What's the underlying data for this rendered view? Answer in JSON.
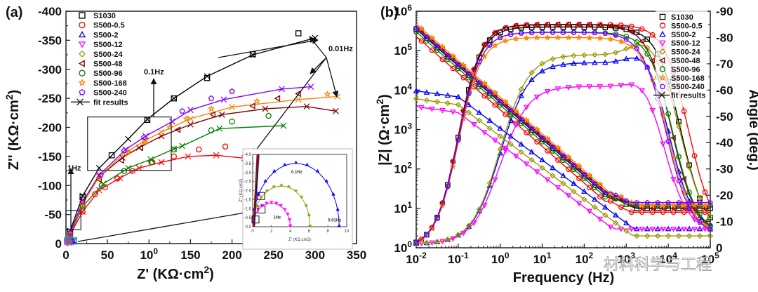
{
  "chart_data": [
    {
      "panel": "(a)",
      "type": "scatter",
      "title": "",
      "xlabel": "Z' (KΩ·cm2)",
      "ylabel": "Z'' (KΩ·cm2)",
      "xlim": [
        0,
        350
      ],
      "ylim": [
        0,
        -400
      ],
      "xticks": [
        "0",
        "50",
        "100",
        "150",
        "200",
        "250",
        "300",
        "350"
      ],
      "yticks": [
        "0",
        "-50",
        "-100",
        "-150",
        "-200",
        "-250",
        "-300",
        "-350",
        "-400"
      ],
      "legend_position": "top-left",
      "annotations": [
        "0.1Hz",
        "1Hz",
        "0.01Hz"
      ],
      "series": [
        {
          "name": "S1030",
          "color": "#000000",
          "marker": "square",
          "points": [
            [
              5,
              -20
            ],
            [
              20,
              -80
            ],
            [
              55,
              -152
            ],
            [
              98,
              -213
            ],
            [
              130,
              -250
            ],
            [
              170,
              -285
            ],
            [
              225,
              -326
            ],
            [
              280,
              -362
            ]
          ],
          "fit": [
            [
              0,
              0
            ],
            [
              5,
              -22
            ],
            [
              20,
              -82
            ],
            [
              40,
              -130
            ],
            [
              75,
              -180
            ],
            [
              98,
              -214
            ],
            [
              130,
              -250
            ],
            [
              170,
              -288
            ],
            [
              225,
              -325
            ],
            [
              300,
              -354
            ]
          ]
        },
        {
          "name": "S500-0.5",
          "color": "#ff0000",
          "marker": "circle",
          "points": [
            [
              5,
              -15
            ],
            [
              20,
              -55
            ],
            [
              35,
              -85
            ],
            [
              47,
              -97
            ],
            [
              62,
              -112
            ],
            [
              80,
              -125
            ],
            [
              104,
              -140
            ],
            [
              130,
              -150
            ],
            [
              160,
              -162
            ],
            [
              192,
              -167
            ]
          ],
          "fit": [
            [
              0,
              0
            ],
            [
              5,
              -15
            ],
            [
              20,
              -55
            ],
            [
              40,
              -92
            ],
            [
              65,
              -113
            ],
            [
              88,
              -130
            ],
            [
              115,
              -140
            ],
            [
              147,
              -150
            ],
            [
              181,
              -152
            ],
            [
              215,
              -147
            ]
          ]
        },
        {
          "name": "S500-2",
          "color": "#0000ff",
          "marker": "triangle-up",
          "points": [
            [
              4,
              -4
            ],
            [
              6,
              -6
            ],
            [
              8,
              -5
            ]
          ],
          "fit": [
            [
              0,
              0
            ],
            [
              3,
              -3
            ],
            [
              6,
              -6
            ],
            [
              9,
              -5
            ]
          ]
        },
        {
          "name": "S500-12",
          "color": "#ff00ff",
          "marker": "triangle-down",
          "points": [
            [
              2,
              -1
            ],
            [
              3,
              -2
            ]
          ],
          "fit": [
            [
              0,
              0
            ],
            [
              2,
              -2
            ],
            [
              4,
              -1
            ]
          ]
        },
        {
          "name": "S500-24",
          "color": "#999900",
          "marker": "diamond",
          "points": [
            [
              3,
              -3
            ],
            [
              5,
              -4
            ]
          ],
          "fit": [
            [
              0,
              0
            ],
            [
              3,
              -3
            ],
            [
              6,
              -2
            ]
          ]
        },
        {
          "name": "S500-48",
          "color": "#800000",
          "marker": "triangle-left",
          "points": [
            [
              5,
              -18
            ],
            [
              20,
              -72
            ],
            [
              40,
              -110
            ],
            [
              67,
              -143
            ],
            [
              90,
              -165
            ],
            [
              135,
              -196
            ],
            [
              177,
              -222
            ],
            [
              225,
              -237
            ],
            [
              255,
              -250
            ],
            [
              280,
              -258
            ]
          ],
          "fit": [
            [
              0,
              0
            ],
            [
              5,
              -18
            ],
            [
              20,
              -72
            ],
            [
              40,
              -115
            ],
            [
              68,
              -148
            ],
            [
              88,
              -165
            ],
            [
              115,
              -185
            ],
            [
              150,
              -205
            ],
            [
              188,
              -222
            ],
            [
              240,
              -232
            ],
            [
              290,
              -236
            ],
            [
              325,
              -228
            ]
          ]
        },
        {
          "name": "S500-96",
          "color": "#008000",
          "marker": "circle",
          "points": [
            [
              5,
              -16
            ],
            [
              20,
              -64
            ],
            [
              43,
              -100
            ],
            [
              70,
              -125
            ],
            [
              103,
              -140
            ],
            [
              130,
              -162
            ],
            [
              175,
              -195
            ],
            [
              200,
              -210
            ],
            [
              244,
              -220
            ]
          ],
          "fit": [
            [
              0,
              0
            ],
            [
              5,
              -16
            ],
            [
              20,
              -64
            ],
            [
              45,
              -103
            ],
            [
              75,
              -130
            ],
            [
              102,
              -145
            ],
            [
              130,
              -163
            ],
            [
              140,
              -168
            ],
            [
              185,
              -198
            ],
            [
              262,
              -203
            ]
          ]
        },
        {
          "name": "S500-168",
          "color": "#ff8000",
          "marker": "star",
          "points": [
            [
              5,
              -17
            ],
            [
              20,
              -68
            ],
            [
              40,
              -112
            ],
            [
              75,
              -158
            ],
            [
              95,
              -175
            ],
            [
              125,
              -200
            ],
            [
              145,
              -215
            ],
            [
              175,
              -232
            ],
            [
              230,
              -245
            ],
            [
              315,
              -257
            ]
          ],
          "fit": [
            [
              0,
              0
            ],
            [
              5,
              -17
            ],
            [
              20,
              -68
            ],
            [
              40,
              -115
            ],
            [
              70,
              -155
            ],
            [
              95,
              -177
            ],
            [
              115,
              -192
            ],
            [
              150,
              -215
            ],
            [
              200,
              -235
            ],
            [
              280,
              -248
            ],
            [
              327,
              -253
            ]
          ]
        },
        {
          "name": "S500-240",
          "color": "#8000ff",
          "marker": "pentagon",
          "points": [
            [
              5,
              -18
            ],
            [
              20,
              -72
            ],
            [
              42,
              -118
            ],
            [
              70,
              -160
            ],
            [
              94,
              -183
            ],
            [
              140,
              -228
            ],
            [
              175,
              -250
            ],
            [
              200,
              -262
            ]
          ],
          "fit": [
            [
              0,
              0
            ],
            [
              5,
              -18
            ],
            [
              20,
              -72
            ],
            [
              40,
              -118
            ],
            [
              72,
              -162
            ],
            [
              96,
              -185
            ],
            [
              128,
              -210
            ],
            [
              150,
              -230
            ],
            [
              190,
              -248
            ],
            [
              260,
              -266
            ],
            [
              295,
              -270
            ]
          ]
        }
      ],
      "fit_legend": "fit results",
      "inset": {
        "xlabel": "Z' (KΩ.cm2)",
        "ylabel": "Z'' (KΩ.cm2)",
        "xlim": [
          0,
          10
        ],
        "ylim": [
          0,
          -4
        ],
        "xticks": [
          "0",
          "2",
          "4",
          "6",
          "8",
          "10"
        ],
        "yticks": [
          "0.0",
          "-0.5",
          "-1.0",
          "-1.5",
          "-2.0",
          "-2.5",
          "-3.0",
          "-3.5",
          "-4.0"
        ],
        "annotations": [
          "0.1Hz",
          "1Hz",
          "0.01Hz"
        ]
      }
    },
    {
      "panel": "(b)",
      "type": "line",
      "xlabel": "Frequency (Hz)",
      "ylabel": "|Z| (Ω·cm2)",
      "y2label": "Angle (deg.)",
      "xscale": "log",
      "yscale": "log",
      "xlim": [
        0.01,
        100000
      ],
      "ylim": [
        1,
        1000000
      ],
      "y2lim": [
        0,
        -90
      ],
      "xticks": [
        "10-2",
        "10-1",
        "100",
        "101",
        "102",
        "103",
        "104",
        "105"
      ],
      "yticks": [
        "100",
        "101",
        "102",
        "103",
        "104",
        "105",
        "106"
      ],
      "y2ticks": [
        "0",
        "-10",
        "-20",
        "-30",
        "-40",
        "-50",
        "-60",
        "-70",
        "-80",
        "-90"
      ],
      "legend_position": "top-right",
      "fit_legend": "fit results",
      "series": [
        {
          "name": "S1030",
          "color": "#000000",
          "marker": "square",
          "z0": 350000,
          "zhf": 5,
          "peak": -84,
          "fc": 20000
        },
        {
          "name": "S500-0.5",
          "color": "#ff0000",
          "marker": "circle",
          "z0": 230000,
          "zhf": 4,
          "peak": -85,
          "fc": 30000
        },
        {
          "name": "S500-2",
          "color": "#0000ff",
          "marker": "triangle-up",
          "z0": 9500,
          "zhf": 3,
          "peak": -69,
          "fc": 12000
        },
        {
          "name": "S500-12",
          "color": "#ff00ff",
          "marker": "triangle-down",
          "z0": 3800,
          "zhf": 3,
          "peak": -60,
          "fc": 9000
        },
        {
          "name": "S500-24",
          "color": "#999900",
          "marker": "diamond",
          "z0": 6000,
          "zhf": 2,
          "peak": -72,
          "fc": 22000
        },
        {
          "name": "S500-48",
          "color": "#800000",
          "marker": "triangle-left",
          "z0": 420000,
          "zhf": 5,
          "peak": -85,
          "fc": 12000
        },
        {
          "name": "S500-96",
          "color": "#008000",
          "marker": "circle",
          "z0": 300000,
          "zhf": 6,
          "peak": -82,
          "fc": 13000
        },
        {
          "name": "S500-168",
          "color": "#ff8000",
          "marker": "star",
          "z0": 480000,
          "zhf": 6,
          "peak": -80,
          "fc": 10000
        },
        {
          "name": "S500-240",
          "color": "#8000ff",
          "marker": "pentagon",
          "z0": 380000,
          "zhf": 7,
          "peak": -82,
          "fc": 9000
        }
      ]
    }
  ],
  "watermark": "材料科学与工程"
}
